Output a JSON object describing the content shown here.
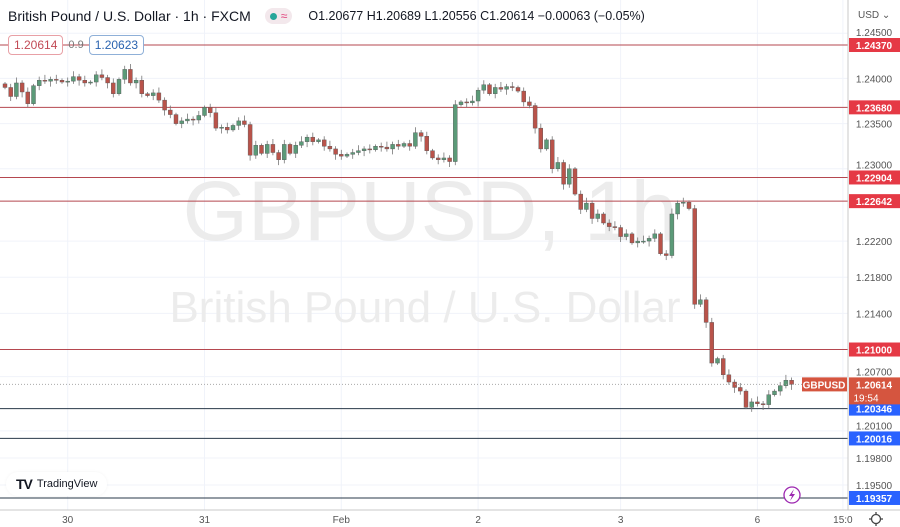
{
  "header": {
    "symbol_title": "British Pound / U.S. Dollar · 1h · FXCM",
    "ohlc": {
      "open": "O1.20677",
      "high": "H1.20689",
      "low": "L1.20556",
      "close": "C1.20614",
      "change": "−0.00063 (−0.05%)"
    },
    "sell_price": "1.20614",
    "spread": "0.9",
    "buy_price": "1.20623"
  },
  "watermark": {
    "symbol": "GBPUSD, 1h",
    "description": "British Pound / U.S. Dollar"
  },
  "price_axis": {
    "currency": "USD ⌄",
    "ticks": [
      "1.24500",
      "1.24000",
      "1.23500",
      "1.23000",
      "1.22200",
      "1.21800",
      "1.21400",
      "1.20700",
      "1.20100",
      "1.19800",
      "1.19500"
    ],
    "tick_values": [
      1.245,
      1.24,
      1.235,
      1.23,
      1.222,
      1.218,
      1.214,
      1.207,
      1.201,
      1.198,
      1.195
    ]
  },
  "horizontal_lines": [
    {
      "label": "1.24370",
      "value": 1.2437,
      "color": "#e53945"
    },
    {
      "label": "1.23680",
      "value": 1.2368,
      "color": "#e53945"
    },
    {
      "label": "1.22904",
      "value": 1.22904,
      "color": "#e53945"
    },
    {
      "label": "1.22642",
      "value": 1.22642,
      "color": "#e53945"
    },
    {
      "label": "1.21000",
      "value": 1.21,
      "color": "#e53945"
    },
    {
      "label": "1.20346",
      "value": 1.20346,
      "color": "#2962ff"
    },
    {
      "label": "1.20016",
      "value": 1.20016,
      "color": "#2962ff"
    },
    {
      "label": "1.19357",
      "value": 1.19357,
      "color": "#2962ff"
    }
  ],
  "current_price": {
    "symbol_tag": "GBPUSD",
    "price": "1.20614",
    "countdown": "19:54",
    "value": 1.20614,
    "color": "#d5553f"
  },
  "time_axis": {
    "labels": [
      "30",
      "31",
      "Feb",
      "2",
      "3",
      "6",
      "15:0"
    ],
    "label_candle_index": [
      11,
      35,
      59,
      83,
      108,
      132,
      147
    ]
  },
  "branding": {
    "logo_text": "TradingView"
  },
  "colors": {
    "up": "#5b9a78",
    "down": "#b9534a"
  },
  "chart_data": {
    "type": "candlestick",
    "symbol": "GBPUSD",
    "interval": "1h",
    "ylim": [
      1.1925,
      1.2475
    ],
    "closes": [
      1.239,
      1.238,
      1.2395,
      1.2385,
      1.2372,
      1.2392,
      1.2398,
      1.2397,
      1.2399,
      1.2398,
      1.2396,
      1.2397,
      1.2402,
      1.2398,
      1.2395,
      1.2396,
      1.2404,
      1.2401,
      1.2395,
      1.2383,
      1.2399,
      1.241,
      1.2395,
      1.2398,
      1.2383,
      1.2381,
      1.2384,
      1.2376,
      1.2365,
      1.236,
      1.235,
      1.2353,
      1.2355,
      1.2354,
      1.2359,
      1.2368,
      1.2362,
      1.2345,
      1.2346,
      1.2343,
      1.2348,
      1.2353,
      1.2349,
      1.2315,
      1.2326,
      1.2317,
      1.2327,
      1.2318,
      1.231,
      1.2327,
      1.2317,
      1.2326,
      1.233,
      1.2335,
      1.233,
      1.2332,
      1.2325,
      1.2322,
      1.2316,
      1.2314,
      1.2316,
      1.2318,
      1.232,
      1.2322,
      1.2321,
      1.2325,
      1.2324,
      1.2322,
      1.2327,
      1.2325,
      1.2328,
      1.2325,
      1.234,
      1.2336,
      1.232,
      1.2312,
      1.231,
      1.2312,
      1.2308,
      1.2371,
      1.2374,
      1.2373,
      1.2375,
      1.2387,
      1.2393,
      1.2383,
      1.239,
      1.2388,
      1.2391,
      1.239,
      1.2386,
      1.2374,
      1.237,
      1.2345,
      1.2322,
      1.2332,
      1.23,
      1.2307,
      1.2283,
      1.23,
      1.2272,
      1.2255,
      1.2262,
      1.2245,
      1.225,
      1.224,
      1.2236,
      1.2235,
      1.2225,
      1.2228,
      1.2218,
      1.222,
      1.222,
      1.2223,
      1.2228,
      1.2206,
      1.2204,
      1.225,
      1.2262,
      1.2263,
      1.2256,
      1.215,
      1.2155,
      1.213,
      1.2085,
      1.209,
      1.2072,
      1.2064,
      1.2058,
      1.2054,
      1.2036,
      1.2042,
      1.204,
      1.2039,
      1.205,
      1.2054,
      1.206,
      1.2066,
      1.20614
    ]
  }
}
